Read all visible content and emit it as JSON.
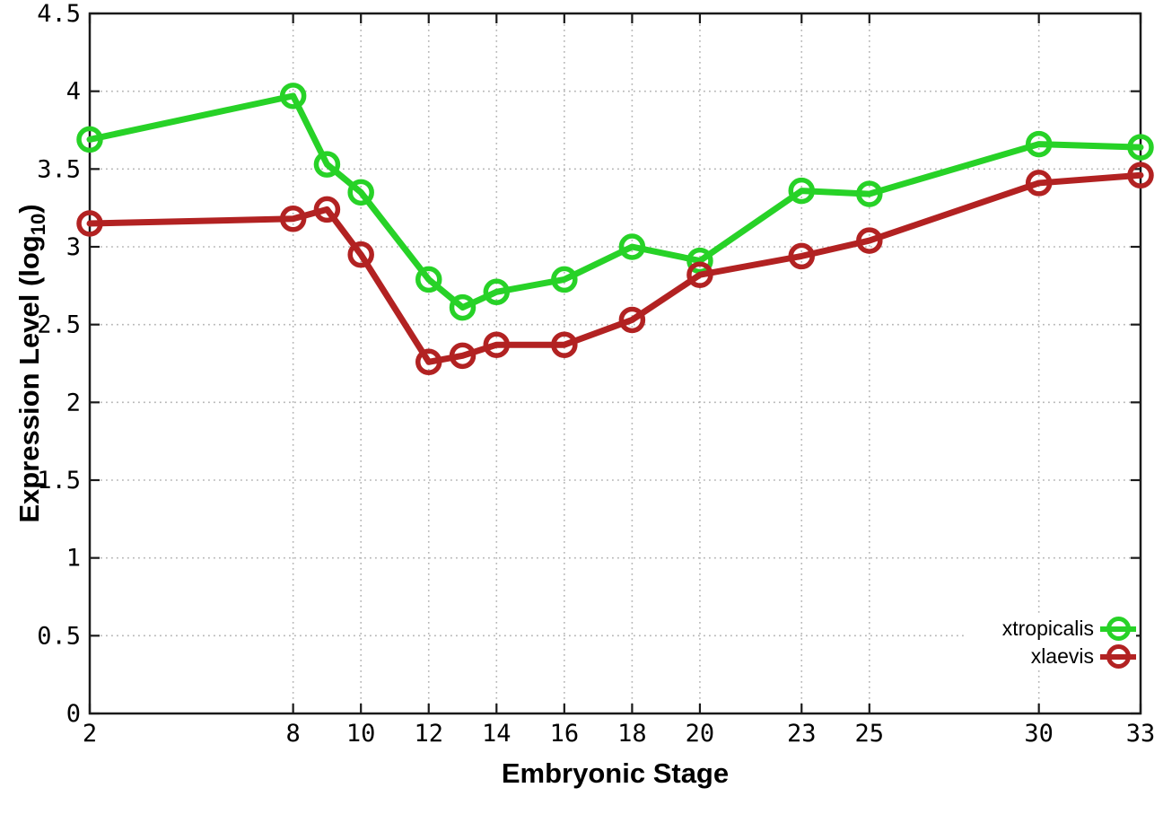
{
  "chart_data": {
    "type": "line",
    "title": "",
    "xlabel": "Embryonic Stage",
    "ylabel": {
      "main": "Expression Level (log",
      "sub": "10",
      "suffix": ")"
    },
    "xlim": [
      2,
      33
    ],
    "ylim": [
      0,
      4.5
    ],
    "x_ticks": [
      2,
      8,
      10,
      12,
      14,
      16,
      18,
      20,
      23,
      25,
      30,
      33
    ],
    "y_ticks": [
      0,
      0.5,
      1,
      1.5,
      2,
      2.5,
      3,
      3.5,
      4,
      4.5
    ],
    "grid": "dotted",
    "legend_position": "bottom-right-inside",
    "x": [
      2,
      8,
      9,
      10,
      12,
      13,
      14,
      16,
      18,
      20,
      23,
      25,
      30,
      33
    ],
    "series": [
      {
        "name": "xtropicalis",
        "color": "#27d227",
        "marker": "open-circle",
        "values": [
          3.69,
          3.97,
          3.53,
          3.35,
          2.79,
          2.61,
          2.71,
          2.79,
          3.0,
          2.91,
          3.36,
          3.34,
          3.66,
          3.64
        ]
      },
      {
        "name": "xlaevis",
        "color": "#b22222",
        "marker": "open-circle",
        "values": [
          3.15,
          3.18,
          3.24,
          2.95,
          2.26,
          2.3,
          2.37,
          2.37,
          2.53,
          2.82,
          2.94,
          3.04,
          3.41,
          3.46
        ]
      }
    ],
    "colors": {
      "grid": "#b5b5b5",
      "axis": "#1a1a1a",
      "text": "#000000",
      "background": "#ffffff"
    }
  }
}
